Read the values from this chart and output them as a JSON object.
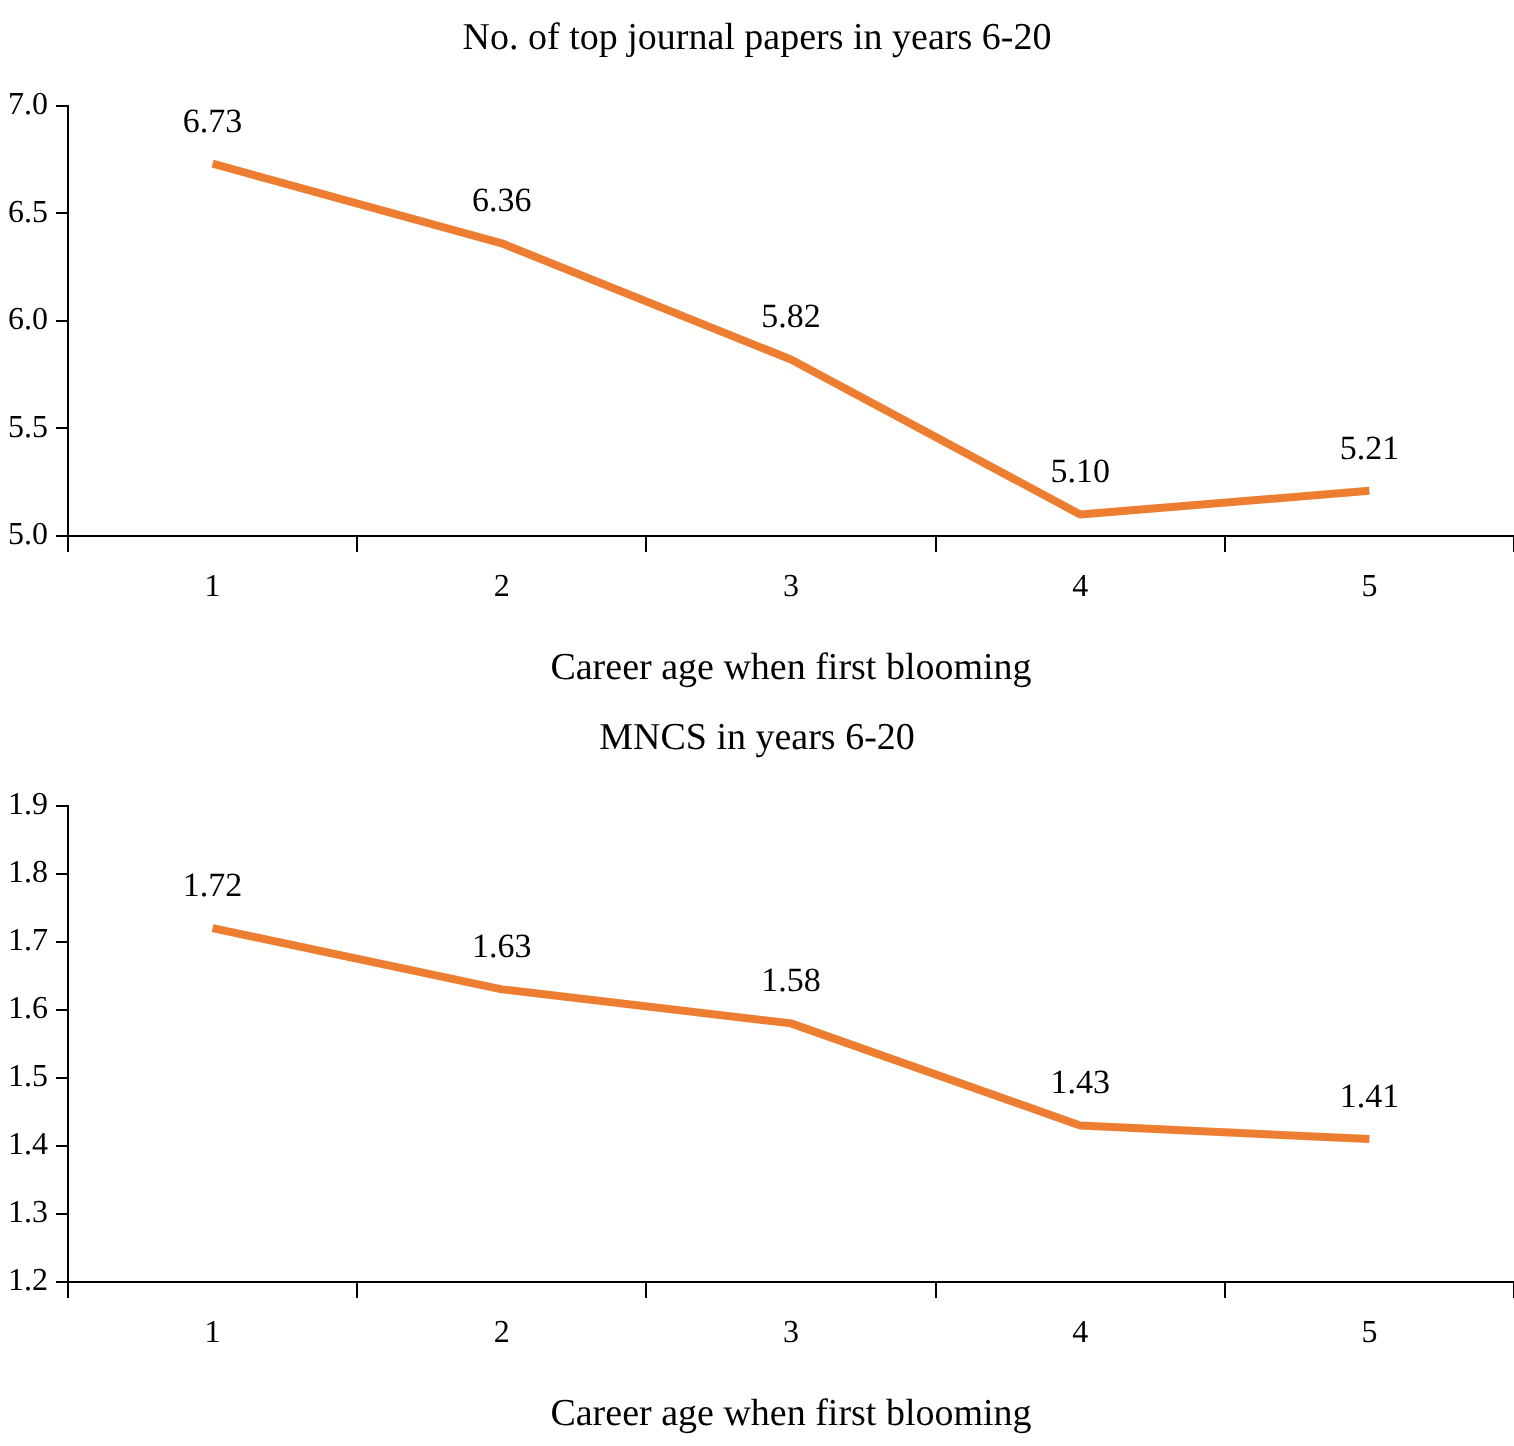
{
  "chart_data": [
    {
      "type": "line",
      "title": "No. of top journal papers in years 6-20",
      "xlabel": "Career age when first blooming",
      "categories": [
        "1",
        "2",
        "3",
        "4",
        "5"
      ],
      "series": [
        {
          "color": "#ed7d31",
          "values": [
            6.73,
            6.36,
            5.82,
            5.1,
            5.21
          ],
          "value_labels": [
            "6.73",
            "6.36",
            "5.82",
            "5.10",
            "5.21"
          ]
        }
      ],
      "ylim": [
        5,
        7
      ],
      "yticks": [
        {
          "value": 5,
          "label": "5.0"
        },
        {
          "value": 5.5,
          "label": "5.5"
        },
        {
          "value": 6,
          "label": "6.0"
        },
        {
          "value": 6.5,
          "label": "6.5"
        },
        {
          "value": 7,
          "label": "7.0"
        }
      ],
      "grid": false,
      "legend": false,
      "marker": "none",
      "line_style": "solid"
    },
    {
      "type": "line",
      "title": "MNCS in years 6-20",
      "xlabel": "Career age when first blooming",
      "categories": [
        "1",
        "2",
        "3",
        "4",
        "5"
      ],
      "series": [
        {
          "color": "#ed7d31",
          "values": [
            1.72,
            1.63,
            1.58,
            1.43,
            1.41
          ],
          "value_labels": [
            "1.72",
            "1.63",
            "1.58",
            "1.43",
            "1.41"
          ]
        }
      ],
      "ylim": [
        1.2,
        1.9
      ],
      "yticks": [
        {
          "value": 1.2,
          "label": "1.2"
        },
        {
          "value": 1.3,
          "label": "1.3"
        },
        {
          "value": 1.4,
          "label": "1.4"
        },
        {
          "value": 1.5,
          "label": "1.5"
        },
        {
          "value": 1.6,
          "label": "1.6"
        },
        {
          "value": 1.7,
          "label": "1.7"
        },
        {
          "value": 1.8,
          "label": "1.8"
        },
        {
          "value": 1.9,
          "label": "1.9"
        }
      ],
      "grid": false,
      "legend": false,
      "marker": "none",
      "line_style": "solid"
    }
  ]
}
